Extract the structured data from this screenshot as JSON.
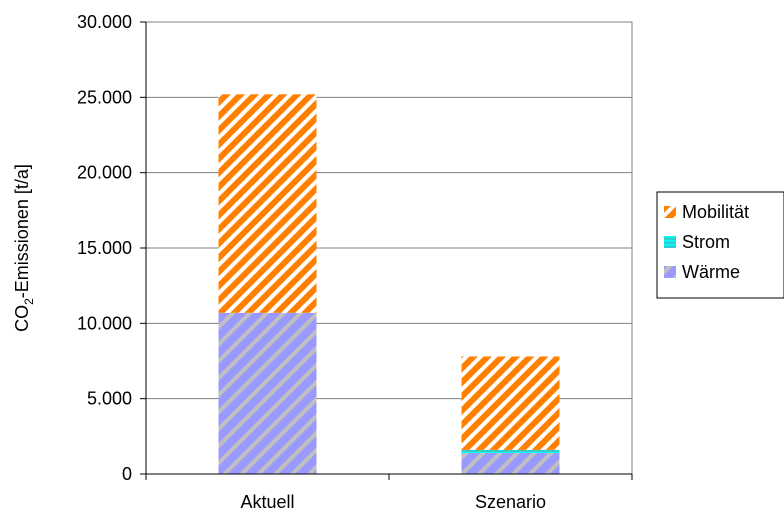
{
  "chart_data": {
    "type": "bar",
    "stacked": true,
    "categories": [
      "Aktuell",
      "Szenario"
    ],
    "series": [
      {
        "name": "Wärme",
        "values": [
          10700,
          1400
        ],
        "color": "#9999ff",
        "pattern": "hatch-grey"
      },
      {
        "name": "Strom",
        "values": [
          0,
          200
        ],
        "color": "#33cccc",
        "pattern": "horizontal"
      },
      {
        "name": "Mobilität",
        "values": [
          14500,
          6200
        ],
        "color": "#ff8000",
        "pattern": "hatch-white"
      }
    ],
    "ylim": [
      0,
      30000
    ],
    "yticks": [
      0,
      5000,
      10000,
      15000,
      20000,
      25000,
      30000
    ],
    "ytick_labels": [
      "0",
      "5.000",
      "10.000",
      "15.000",
      "20.000",
      "25.000",
      "30.000"
    ],
    "ylabel_main": "CO",
    "ylabel_sub": "2",
    "ylabel_rest": "-Emissionen [t/a]",
    "grid": true,
    "legend_position": "right",
    "legend_order": [
      "Mobilität",
      "Strom",
      "Wärme"
    ]
  }
}
